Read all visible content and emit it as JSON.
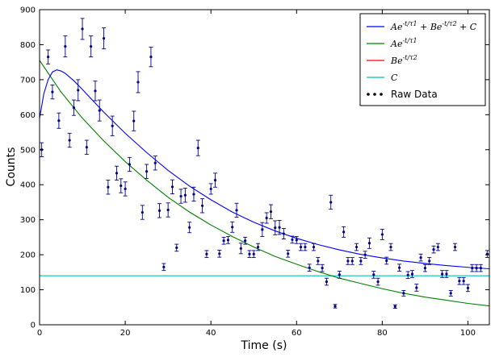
{
  "chart_data": {
    "type": "scatter",
    "xlabel": "Time (s)",
    "ylabel": "Counts",
    "xlim": [
      0,
      105
    ],
    "ylim": [
      0,
      900
    ],
    "x_ticks": [
      0,
      20,
      40,
      60,
      80,
      100
    ],
    "y_ticks": [
      0,
      100,
      200,
      300,
      400,
      500,
      600,
      700,
      800,
      900
    ],
    "grid": false,
    "legend_position": "top-right",
    "series": [
      {
        "name": "Ae^{-t/τ1} + Be^{-t/τ2} + C",
        "kind": "fit-total",
        "color": "#0000ff",
        "points": [
          [
            0,
            590
          ],
          [
            1,
            660
          ],
          [
            2,
            700
          ],
          [
            3,
            722
          ],
          [
            4,
            728
          ],
          [
            5,
            725
          ],
          [
            6,
            718
          ],
          [
            8,
            697
          ],
          [
            10,
            672
          ],
          [
            12,
            646
          ],
          [
            15,
            607
          ],
          [
            20,
            547
          ],
          [
            25,
            492
          ],
          [
            30,
            441
          ],
          [
            35,
            396
          ],
          [
            40,
            357
          ],
          [
            45,
            322
          ],
          [
            50,
            293
          ],
          [
            55,
            268
          ],
          [
            60,
            247
          ],
          [
            65,
            229
          ],
          [
            70,
            214
          ],
          [
            75,
            201
          ],
          [
            80,
            191
          ],
          [
            85,
            182
          ],
          [
            90,
            175
          ],
          [
            95,
            169
          ],
          [
            100,
            164
          ],
          [
            105,
            160
          ]
        ]
      },
      {
        "name": "Ae^{-t/τ1}",
        "kind": "fit-component",
        "color": "#008000",
        "points": [
          [
            0,
            755
          ],
          [
            5,
            665
          ],
          [
            10,
            590
          ],
          [
            15,
            525
          ],
          [
            20,
            466
          ],
          [
            25,
            413
          ],
          [
            30,
            364
          ],
          [
            35,
            322
          ],
          [
            40,
            285
          ],
          [
            45,
            252
          ],
          [
            50,
            222
          ],
          [
            55,
            195
          ],
          [
            60,
            173
          ],
          [
            65,
            152
          ],
          [
            70,
            133
          ],
          [
            75,
            118
          ],
          [
            80,
            103
          ],
          [
            85,
            90
          ],
          [
            90,
            79
          ],
          [
            95,
            70
          ],
          [
            100,
            61
          ],
          [
            105,
            54
          ]
        ]
      },
      {
        "name": "Be^{-t/τ2}",
        "kind": "fit-component",
        "color": "#ff0000",
        "points": [
          [
            0,
            0
          ],
          [
            105,
            0
          ]
        ]
      },
      {
        "name": "C",
        "kind": "fit-component",
        "color": "#00bfbf",
        "points": [
          [
            0,
            140
          ],
          [
            105,
            140
          ]
        ]
      }
    ],
    "raw_data": {
      "name": "Raw Data",
      "color": "#00008b",
      "points": [
        [
          0.5,
          500,
          20
        ],
        [
          2,
          765,
          20
        ],
        [
          3,
          665,
          20
        ],
        [
          4.5,
          583,
          22
        ],
        [
          6,
          795,
          30
        ],
        [
          7,
          527,
          20
        ],
        [
          8,
          620,
          22
        ],
        [
          9,
          670,
          30
        ],
        [
          10,
          845,
          30
        ],
        [
          11,
          507,
          20
        ],
        [
          12,
          795,
          30
        ],
        [
          13,
          668,
          28
        ],
        [
          14,
          612,
          30
        ],
        [
          15,
          818,
          30
        ],
        [
          16,
          393,
          20
        ],
        [
          17,
          568,
          28
        ],
        [
          18,
          433,
          20
        ],
        [
          19,
          397,
          20
        ],
        [
          20,
          388,
          20
        ],
        [
          21,
          458,
          20
        ],
        [
          22,
          582,
          28
        ],
        [
          23,
          693,
          30
        ],
        [
          24,
          321,
          20
        ],
        [
          25,
          438,
          20
        ],
        [
          26,
          765,
          28
        ],
        [
          27,
          462,
          20
        ],
        [
          28,
          326,
          20
        ],
        [
          29,
          165,
          10
        ],
        [
          30,
          328,
          20
        ],
        [
          31,
          394,
          20
        ],
        [
          32,
          220,
          10
        ],
        [
          33,
          367,
          20
        ],
        [
          34,
          370,
          20
        ],
        [
          35,
          278,
          15
        ],
        [
          36,
          373,
          20
        ],
        [
          37,
          505,
          22
        ],
        [
          38,
          340,
          20
        ],
        [
          39,
          202,
          10
        ],
        [
          40,
          388,
          15
        ],
        [
          41,
          413,
          20
        ],
        [
          42,
          203,
          10
        ],
        [
          43,
          240,
          10
        ],
        [
          44,
          242,
          10
        ],
        [
          45,
          279,
          15
        ],
        [
          46,
          327,
          20
        ],
        [
          47,
          218,
          15
        ],
        [
          48,
          240,
          10
        ],
        [
          49,
          202,
          10
        ],
        [
          50,
          202,
          10
        ],
        [
          51,
          222,
          10
        ],
        [
          52,
          272,
          20
        ],
        [
          53,
          305,
          15
        ],
        [
          54,
          323,
          20
        ],
        [
          55,
          277,
          20
        ],
        [
          56,
          278,
          20
        ],
        [
          57,
          260,
          15
        ],
        [
          58,
          203,
          10
        ],
        [
          59,
          243,
          10
        ],
        [
          60,
          242,
          10
        ],
        [
          61,
          222,
          10
        ],
        [
          62,
          222,
          10
        ],
        [
          63,
          163,
          10
        ],
        [
          64,
          222,
          10
        ],
        [
          65,
          182,
          10
        ],
        [
          66,
          162,
          10
        ],
        [
          67,
          123,
          10
        ],
        [
          68,
          350,
          20
        ],
        [
          69,
          53,
          5
        ],
        [
          70,
          143,
          10
        ],
        [
          71,
          265,
          15
        ],
        [
          72,
          182,
          10
        ],
        [
          73,
          182,
          10
        ],
        [
          74,
          222,
          10
        ],
        [
          75,
          182,
          10
        ],
        [
          76,
          200,
          10
        ],
        [
          77,
          233,
          15
        ],
        [
          78,
          143,
          10
        ],
        [
          79,
          123,
          10
        ],
        [
          80,
          258,
          15
        ],
        [
          81,
          183,
          10
        ],
        [
          82,
          222,
          10
        ],
        [
          83,
          52,
          5
        ],
        [
          84,
          163,
          10
        ],
        [
          85,
          90,
          8
        ],
        [
          86,
          142,
          10
        ],
        [
          87,
          145,
          10
        ],
        [
          88,
          106,
          10
        ],
        [
          89,
          192,
          10
        ],
        [
          90,
          162,
          10
        ],
        [
          91,
          182,
          10
        ],
        [
          92,
          215,
          10
        ],
        [
          93,
          222,
          10
        ],
        [
          94,
          145,
          10
        ],
        [
          95,
          145,
          10
        ],
        [
          96,
          90,
          8
        ],
        [
          97,
          222,
          10
        ],
        [
          98,
          125,
          10
        ],
        [
          99,
          125,
          10
        ],
        [
          100,
          105,
          10
        ],
        [
          101,
          162,
          10
        ],
        [
          102,
          162,
          10
        ],
        [
          103,
          162,
          10
        ],
        [
          104.5,
          202,
          10
        ]
      ]
    },
    "legend": [
      {
        "label": "Ae^{-t/τ1} + Be^{-t/τ2} + C",
        "color": "#0000ff",
        "marker": "line"
      },
      {
        "label": "Ae^{-t/τ1}",
        "color": "#008000",
        "marker": "line"
      },
      {
        "label": "Be^{-t/τ2}",
        "color": "#ff0000",
        "marker": "line"
      },
      {
        "label": "C",
        "color": "#00bfbf",
        "marker": "line"
      },
      {
        "label": "Raw Data",
        "color": "#000000",
        "marker": "dots"
      }
    ]
  }
}
